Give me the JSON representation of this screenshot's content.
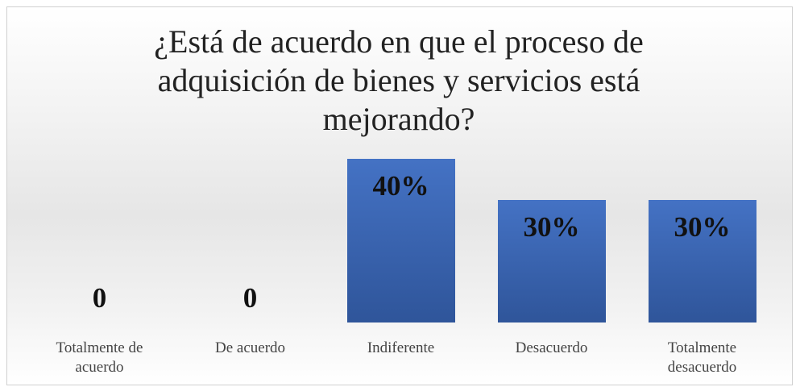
{
  "chart_data": {
    "type": "bar",
    "title": "¿Está de acuerdo en que el proceso de adquisición de bienes y servicios está mejorando?",
    "categories": [
      "Totalmente de acuerdo",
      "De acuerdo",
      "Indiferente",
      "Desacuerdo",
      "Totalmente desacuerdo"
    ],
    "values": [
      0,
      0,
      40,
      30,
      30
    ],
    "value_labels": [
      "0",
      "0",
      "40%",
      "30%",
      "30%"
    ],
    "color": "#4472c4"
  }
}
